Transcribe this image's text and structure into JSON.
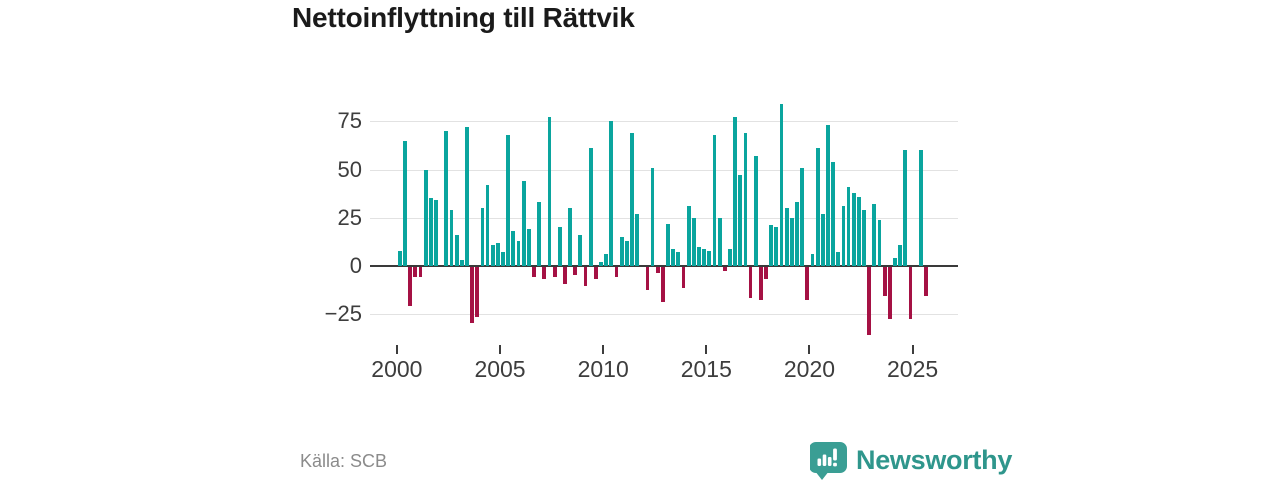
{
  "title": "Nettoinflyttning till Rättvik",
  "source": "Källa: SCB",
  "branding": {
    "name": "Newsworthy",
    "icon": "newsworthy-speech-bubble-barchart-icon",
    "color": "#2f968c",
    "icon_color": "#3a9e94"
  },
  "colors": {
    "positive_bar": "#0aa59e",
    "negative_bar": "#a51144",
    "grid": "#e2e2e2",
    "zero_line": "#3a3a3a",
    "axis_text": "#3d3d3d",
    "title_text": "#1a1a1a",
    "source_text": "#8b8b8b",
    "background": "#ffffff"
  },
  "chart_data": {
    "type": "bar",
    "title": "Nettoinflyttning till Rättvik",
    "xlabel": "",
    "ylabel": "",
    "frequency": "quarterly",
    "start": "2000-Q1",
    "end": "2025-Q3",
    "grid": "horizontal",
    "legend": "none",
    "ylim": [
      -40,
      90
    ],
    "x_tick_years": [
      2000,
      2005,
      2010,
      2015,
      2020,
      2025
    ],
    "x_tick_labels": [
      "2000",
      "2005",
      "2010",
      "2015",
      "2020",
      "2025"
    ],
    "y_ticks": [
      75,
      50,
      25,
      0,
      -25
    ],
    "y_tick_labels": [
      "75",
      "50",
      "25",
      "0",
      "−25"
    ],
    "values_by_year": {
      "2000": [
        8,
        65,
        -20,
        -5
      ],
      "2001": [
        -5,
        50,
        35,
        34
      ],
      "2002": [
        0,
        70,
        29,
        16
      ],
      "2003": [
        3,
        72,
        -29,
        -26
      ],
      "2004": [
        30,
        42,
        11,
        12
      ],
      "2005": [
        7,
        68,
        18,
        13
      ],
      "2006": [
        44,
        19,
        -5,
        33
      ],
      "2007": [
        -6,
        77,
        -5,
        20
      ],
      "2008": [
        -9,
        30,
        -4,
        16
      ],
      "2009": [
        -10,
        61,
        -6,
        2
      ],
      "2010": [
        6,
        75,
        -5,
        15
      ],
      "2011": [
        13,
        69,
        27,
        0
      ],
      "2012": [
        -12,
        51,
        -3,
        -18
      ],
      "2013": [
        22,
        9,
        7,
        -11
      ],
      "2014": [
        31,
        25,
        10,
        9
      ],
      "2015": [
        8,
        68,
        25,
        -2
      ],
      "2016": [
        9,
        77,
        47,
        69
      ],
      "2017": [
        -16,
        57,
        -17,
        -6
      ],
      "2018": [
        21,
        20,
        84,
        30
      ],
      "2019": [
        25,
        33,
        51,
        -17
      ],
      "2020": [
        6,
        61,
        27,
        73
      ],
      "2021": [
        54,
        7,
        31,
        41
      ],
      "2022": [
        38,
        36,
        29,
        -35
      ],
      "2023": [
        32,
        24,
        -15,
        -27
      ],
      "2024": [
        4,
        11,
        60,
        -27
      ],
      "2025": [
        0,
        60,
        -15
      ]
    }
  }
}
